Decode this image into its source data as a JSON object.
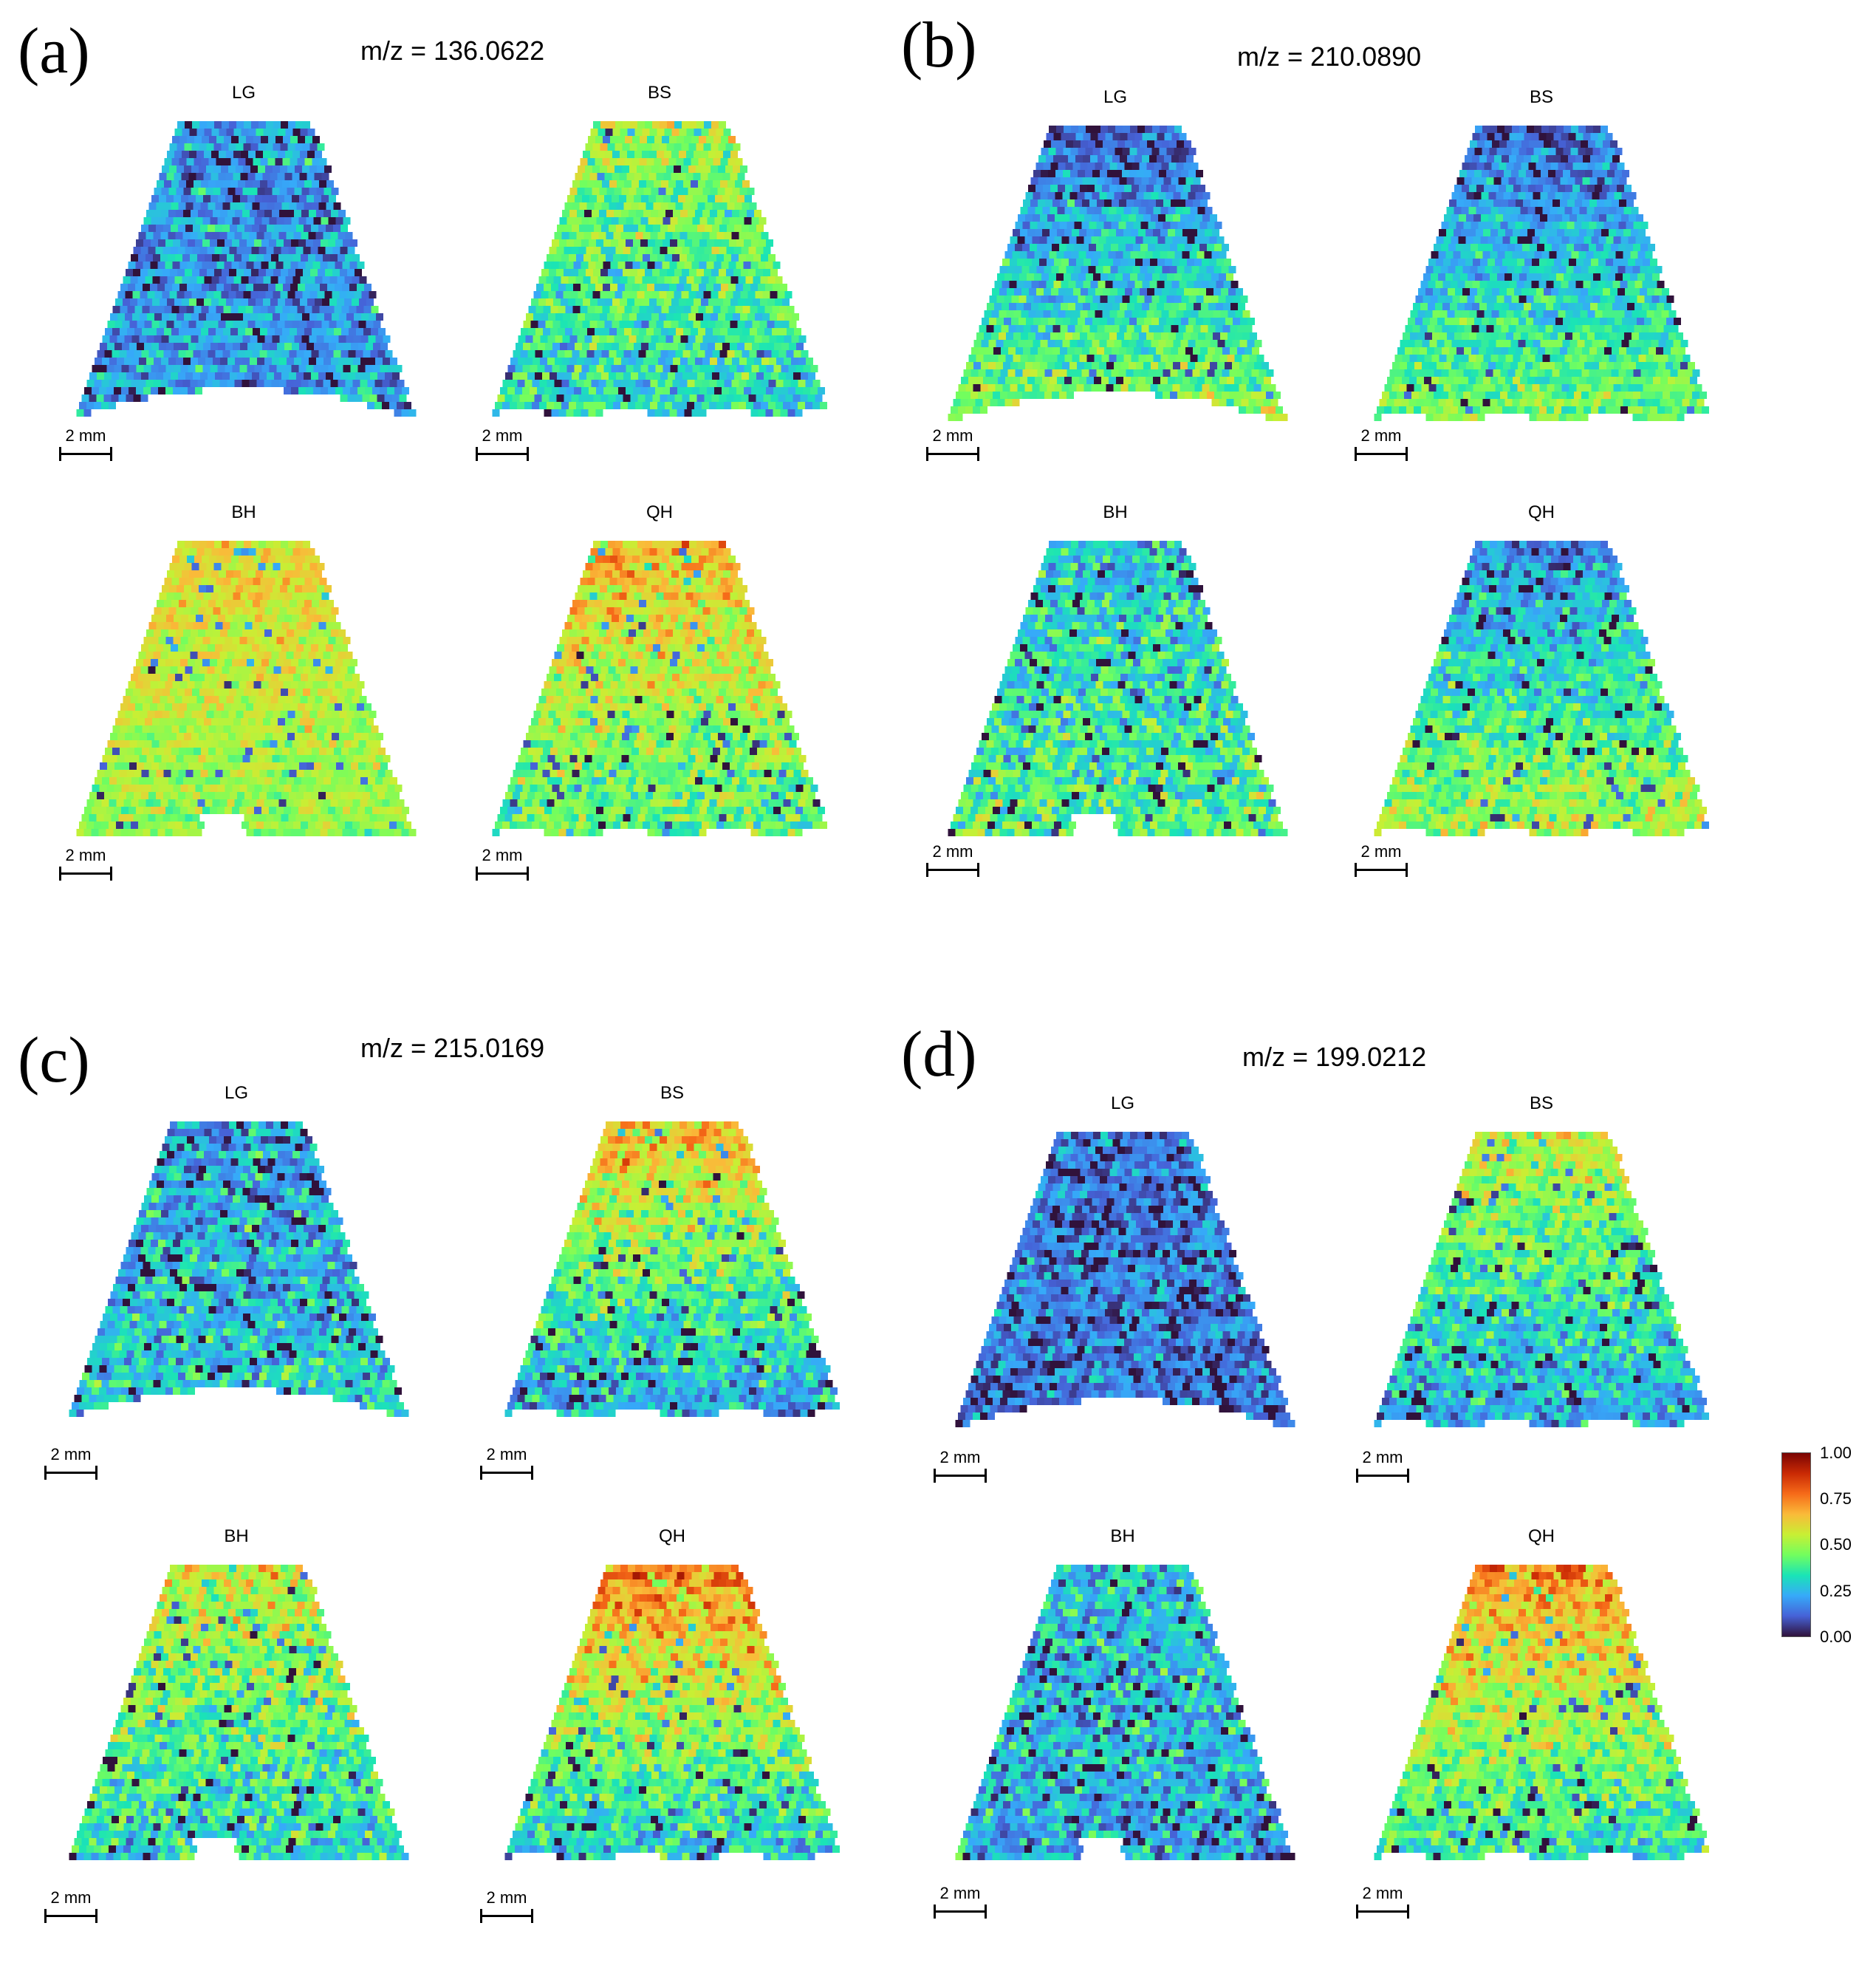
{
  "chart_data": [
    {
      "type": "heatmap",
      "panel": "(a)",
      "title": "m/z = 136.0622",
      "subplots": [
        {
          "label": "LG",
          "scalebar": "2 mm",
          "mean_intensity": 0.45,
          "top_bias": -0.25,
          "bottom_bias": -0.25,
          "noise": 0.28,
          "bottom_shape": "curve"
        },
        {
          "label": "BS",
          "scalebar": "2 mm",
          "mean_intensity": 0.5,
          "top_bias": 0.0,
          "bottom_bias": -0.2,
          "noise": 0.28,
          "bottom_shape": "wavy"
        },
        {
          "label": "BH",
          "scalebar": "2 mm",
          "mean_intensity": 0.62,
          "top_bias": 0.0,
          "bottom_bias": -0.15,
          "noise": 0.18,
          "bottom_shape": "notch"
        },
        {
          "label": "QH",
          "scalebar": "2 mm",
          "mean_intensity": 0.55,
          "top_bias": 0.1,
          "bottom_bias": -0.15,
          "noise": 0.25,
          "bottom_shape": "wavy"
        }
      ]
    },
    {
      "type": "heatmap",
      "panel": "(b)",
      "title": "m/z = 210.0890",
      "subplots": [
        {
          "label": "LG",
          "scalebar": "2 mm",
          "mean_intensity": 0.15,
          "top_bias": -0.05,
          "bottom_bias": 0.35,
          "noise": 0.25,
          "bottom_shape": "curve"
        },
        {
          "label": "BS",
          "scalebar": "2 mm",
          "mean_intensity": 0.12,
          "top_bias": 0.0,
          "bottom_bias": 0.35,
          "noise": 0.22,
          "bottom_shape": "wavy"
        },
        {
          "label": "BH",
          "scalebar": "2 mm",
          "mean_intensity": 0.22,
          "top_bias": 0.05,
          "bottom_bias": 0.2,
          "noise": 0.3,
          "bottom_shape": "notch"
        },
        {
          "label": "QH",
          "scalebar": "2 mm",
          "mean_intensity": 0.18,
          "top_bias": 0.0,
          "bottom_bias": 0.35,
          "noise": 0.25,
          "bottom_shape": "wavy"
        }
      ]
    },
    {
      "type": "heatmap",
      "panel": "(c)",
      "title": "m/z = 215.0169",
      "subplots": [
        {
          "label": "LG",
          "scalebar": "2 mm",
          "mean_intensity": 0.25,
          "top_bias": -0.05,
          "bottom_bias": 0.05,
          "noise": 0.3,
          "bottom_shape": "curve"
        },
        {
          "label": "BS",
          "scalebar": "2 mm",
          "mean_intensity": 0.35,
          "top_bias": 0.3,
          "bottom_bias": -0.15,
          "noise": 0.28,
          "bottom_shape": "wavy"
        },
        {
          "label": "BH",
          "scalebar": "2 mm",
          "mean_intensity": 0.4,
          "top_bias": 0.15,
          "bottom_bias": -0.1,
          "noise": 0.3,
          "bottom_shape": "notch"
        },
        {
          "label": "QH",
          "scalebar": "2 mm",
          "mean_intensity": 0.4,
          "top_bias": 0.35,
          "bottom_bias": -0.15,
          "noise": 0.28,
          "bottom_shape": "wavy"
        }
      ]
    },
    {
      "type": "heatmap",
      "panel": "(d)",
      "title": "m/z = 199.0212",
      "subplots": [
        {
          "label": "LG",
          "scalebar": "2 mm",
          "mean_intensity": 0.15,
          "top_bias": 0.0,
          "bottom_bias": 0.0,
          "noise": 0.25,
          "bottom_shape": "curve"
        },
        {
          "label": "BS",
          "scalebar": "2 mm",
          "mean_intensity": 0.3,
          "top_bias": 0.25,
          "bottom_bias": -0.1,
          "noise": 0.25,
          "bottom_shape": "wavy"
        },
        {
          "label": "BH",
          "scalebar": "2 mm",
          "mean_intensity": 0.22,
          "top_bias": 0.05,
          "bottom_bias": 0.0,
          "noise": 0.3,
          "bottom_shape": "notch"
        },
        {
          "label": "QH",
          "scalebar": "2 mm",
          "mean_intensity": 0.42,
          "top_bias": 0.3,
          "bottom_bias": -0.1,
          "noise": 0.25,
          "bottom_shape": "wavy"
        }
      ]
    }
  ],
  "colorbar": {
    "min": 0.0,
    "max": 1.0,
    "ticks": [
      "1.00",
      "0.75",
      "0.50",
      "0.25",
      "0.00"
    ],
    "colormap": [
      "#30123b",
      "#4662d7",
      "#36aaf9",
      "#1ae4b6",
      "#72fe5e",
      "#c8ef34",
      "#faba39",
      "#f66b19",
      "#ca2a04",
      "#7a0403"
    ]
  }
}
